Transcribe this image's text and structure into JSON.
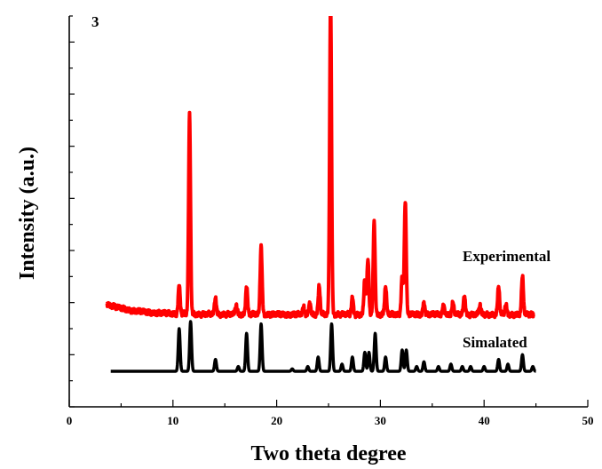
{
  "chart_data": {
    "type": "line",
    "panel_label": "3",
    "xlabel": "Two theta degree",
    "ylabel": "Intensity (a.u.)",
    "xlim": [
      0,
      50
    ],
    "ylim": [
      -1.5,
      15
    ],
    "x_ticks": [
      0,
      10,
      20,
      30,
      40,
      50
    ],
    "y_tick_labels": "none",
    "grid": false,
    "legend": "none",
    "series": [
      {
        "name": "Experimental",
        "color": "#ff0000",
        "baseline": 2.4,
        "range": [
          3.6,
          44.8
        ],
        "peaks": [
          {
            "x": 10.6,
            "h": 1.2
          },
          {
            "x": 11.6,
            "h": 8.4
          },
          {
            "x": 14.1,
            "h": 0.7
          },
          {
            "x": 16.1,
            "h": 0.4
          },
          {
            "x": 17.1,
            "h": 1.2
          },
          {
            "x": 18.5,
            "h": 2.9
          },
          {
            "x": 22.6,
            "h": 0.3
          },
          {
            "x": 23.2,
            "h": 0.5
          },
          {
            "x": 24.1,
            "h": 1.2
          },
          {
            "x": 25.2,
            "h": 13.2
          },
          {
            "x": 27.3,
            "h": 0.7
          },
          {
            "x": 28.5,
            "h": 1.5
          },
          {
            "x": 28.8,
            "h": 2.3
          },
          {
            "x": 29.4,
            "h": 3.9
          },
          {
            "x": 30.5,
            "h": 1.2
          },
          {
            "x": 32.1,
            "h": 1.6
          },
          {
            "x": 32.4,
            "h": 4.8
          },
          {
            "x": 34.2,
            "h": 0.5
          },
          {
            "x": 36.1,
            "h": 0.4
          },
          {
            "x": 37.0,
            "h": 0.5
          },
          {
            "x": 38.1,
            "h": 0.8
          },
          {
            "x": 39.6,
            "h": 0.4
          },
          {
            "x": 41.4,
            "h": 1.2
          },
          {
            "x": 42.1,
            "h": 0.4
          },
          {
            "x": 43.7,
            "h": 1.6
          }
        ]
      },
      {
        "name": "Simalated",
        "color": "#000000",
        "baseline": 0,
        "range": [
          4,
          45
        ],
        "peaks": [
          {
            "x": 10.6,
            "h": 1.8
          },
          {
            "x": 11.7,
            "h": 2.1
          },
          {
            "x": 14.1,
            "h": 0.5
          },
          {
            "x": 16.3,
            "h": 0.2
          },
          {
            "x": 17.1,
            "h": 1.6
          },
          {
            "x": 18.5,
            "h": 2.0
          },
          {
            "x": 21.5,
            "h": 0.1
          },
          {
            "x": 23.0,
            "h": 0.2
          },
          {
            "x": 24.0,
            "h": 0.6
          },
          {
            "x": 25.3,
            "h": 2.0
          },
          {
            "x": 26.3,
            "h": 0.3
          },
          {
            "x": 27.3,
            "h": 0.6
          },
          {
            "x": 28.5,
            "h": 0.8
          },
          {
            "x": 28.9,
            "h": 0.8
          },
          {
            "x": 29.5,
            "h": 1.6
          },
          {
            "x": 30.5,
            "h": 0.6
          },
          {
            "x": 32.1,
            "h": 0.9
          },
          {
            "x": 32.5,
            "h": 0.9
          },
          {
            "x": 33.5,
            "h": 0.2
          },
          {
            "x": 34.2,
            "h": 0.4
          },
          {
            "x": 35.6,
            "h": 0.2
          },
          {
            "x": 36.8,
            "h": 0.3
          },
          {
            "x": 37.9,
            "h": 0.2
          },
          {
            "x": 38.7,
            "h": 0.2
          },
          {
            "x": 40.0,
            "h": 0.2
          },
          {
            "x": 41.4,
            "h": 0.5
          },
          {
            "x": 42.3,
            "h": 0.3
          },
          {
            "x": 43.7,
            "h": 0.7
          },
          {
            "x": 44.7,
            "h": 0.2
          }
        ]
      }
    ]
  }
}
